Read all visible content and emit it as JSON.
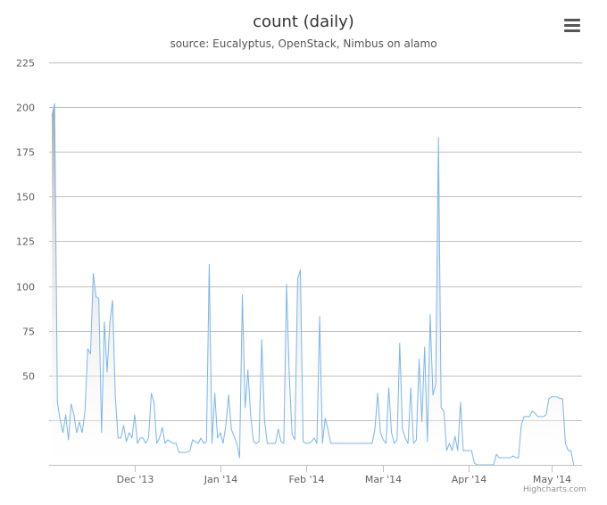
{
  "header": {
    "title": "count (daily)",
    "subtitle": "source: Eucalyptus, OpenStack, Nimbus on alamo",
    "menu_icon": "hamburger-menu-icon"
  },
  "credits": "Highcharts.com",
  "colors": {
    "line": "#7cb5ec",
    "area_top": "#cfcfcf",
    "grid": "#c0c0c0",
    "axis_text": "#606060"
  },
  "chart_data": {
    "type": "area",
    "title": "count (daily)",
    "subtitle": "source: Eucalyptus, OpenStack, Nimbus on alamo",
    "xlabel": "",
    "ylabel": "",
    "ylim": [
      0,
      225
    ],
    "yticks": [
      50,
      75,
      100,
      125,
      150,
      175,
      200,
      225
    ],
    "xticks": [
      {
        "label": "Dec '13",
        "date": "2013-12-01"
      },
      {
        "label": "Jan '14",
        "date": "2014-01-01"
      },
      {
        "label": "Feb '14",
        "date": "2014-02-01"
      },
      {
        "label": "Mar '14",
        "date": "2014-03-01"
      },
      {
        "label": "Apr '14",
        "date": "2014-04-01"
      },
      {
        "label": "May '14",
        "date": "2014-05-01"
      }
    ],
    "grid": true,
    "legend": "none",
    "series": [
      {
        "points": [
          [
            "2013-11-01",
            195
          ],
          [
            "2013-11-02",
            202
          ],
          [
            "2013-11-03",
            35
          ],
          [
            "2013-11-04",
            25
          ],
          [
            "2013-11-05",
            18
          ],
          [
            "2013-11-06",
            28
          ],
          [
            "2013-11-07",
            14
          ],
          [
            "2013-11-08",
            34
          ],
          [
            "2013-11-09",
            28
          ],
          [
            "2013-11-10",
            18
          ],
          [
            "2013-11-11",
            24
          ],
          [
            "2013-11-12",
            18
          ],
          [
            "2013-11-13",
            30
          ],
          [
            "2013-11-14",
            65
          ],
          [
            "2013-11-15",
            62
          ],
          [
            "2013-11-16",
            107
          ],
          [
            "2013-11-17",
            94
          ],
          [
            "2013-11-18",
            93
          ],
          [
            "2013-11-19",
            18
          ],
          [
            "2013-11-20",
            80
          ],
          [
            "2013-11-21",
            52
          ],
          [
            "2013-11-22",
            80
          ],
          [
            "2013-11-23",
            92
          ],
          [
            "2013-11-24",
            38
          ],
          [
            "2013-11-25",
            15
          ],
          [
            "2013-11-26",
            15
          ],
          [
            "2013-11-27",
            22
          ],
          [
            "2013-11-28",
            13
          ],
          [
            "2013-11-29",
            18
          ],
          [
            "2013-11-30",
            15
          ],
          [
            "2013-12-01",
            28
          ],
          [
            "2013-12-02",
            12
          ],
          [
            "2013-12-03",
            15
          ],
          [
            "2013-12-04",
            15
          ],
          [
            "2013-12-05",
            12
          ],
          [
            "2013-12-06",
            15
          ],
          [
            "2013-12-07",
            40
          ],
          [
            "2013-12-08",
            35
          ],
          [
            "2013-12-09",
            12
          ],
          [
            "2013-12-10",
            15
          ],
          [
            "2013-12-11",
            21
          ],
          [
            "2013-12-12",
            12
          ],
          [
            "2013-12-13",
            14
          ],
          [
            "2013-12-14",
            13
          ],
          [
            "2013-12-15",
            12
          ],
          [
            "2013-12-16",
            12
          ],
          [
            "2013-12-17",
            7
          ],
          [
            "2013-12-18",
            7
          ],
          [
            "2013-12-19",
            7
          ],
          [
            "2013-12-20",
            7
          ],
          [
            "2013-12-21",
            8
          ],
          [
            "2013-12-22",
            14
          ],
          [
            "2013-12-23",
            13
          ],
          [
            "2013-12-24",
            12
          ],
          [
            "2013-12-25",
            15
          ],
          [
            "2013-12-26",
            12
          ],
          [
            "2013-12-27",
            13
          ],
          [
            "2013-12-28",
            112
          ],
          [
            "2013-12-29",
            12
          ],
          [
            "2013-12-30",
            40
          ],
          [
            "2013-12-31",
            15
          ],
          [
            "2014-01-01",
            18
          ],
          [
            "2014-01-02",
            12
          ],
          [
            "2014-01-03",
            22
          ],
          [
            "2014-01-04",
            39
          ],
          [
            "2014-01-05",
            20
          ],
          [
            "2014-01-06",
            16
          ],
          [
            "2014-01-07",
            12
          ],
          [
            "2014-01-08",
            4
          ],
          [
            "2014-01-09",
            95
          ],
          [
            "2014-01-10",
            32
          ],
          [
            "2014-01-11",
            53
          ],
          [
            "2014-01-12",
            28
          ],
          [
            "2014-01-13",
            13
          ],
          [
            "2014-01-14",
            12
          ],
          [
            "2014-01-15",
            13
          ],
          [
            "2014-01-16",
            70
          ],
          [
            "2014-01-17",
            25
          ],
          [
            "2014-01-18",
            12
          ],
          [
            "2014-01-19",
            12
          ],
          [
            "2014-01-20",
            12
          ],
          [
            "2014-01-21",
            12
          ],
          [
            "2014-01-22",
            20
          ],
          [
            "2014-01-23",
            13
          ],
          [
            "2014-01-24",
            12
          ],
          [
            "2014-01-25",
            101
          ],
          [
            "2014-01-26",
            50
          ],
          [
            "2014-01-27",
            17
          ],
          [
            "2014-01-28",
            14
          ],
          [
            "2014-01-29",
            104
          ],
          [
            "2014-01-30",
            109
          ],
          [
            "2014-01-31",
            13
          ],
          [
            "2014-02-01",
            12
          ],
          [
            "2014-02-02",
            12
          ],
          [
            "2014-02-03",
            13
          ],
          [
            "2014-02-04",
            15
          ],
          [
            "2014-02-05",
            12
          ],
          [
            "2014-02-06",
            83
          ],
          [
            "2014-02-07",
            12
          ],
          [
            "2014-02-08",
            26
          ],
          [
            "2014-02-09",
            20
          ],
          [
            "2014-02-10",
            12
          ],
          [
            "2014-02-11",
            12
          ],
          [
            "2014-02-12",
            12
          ],
          [
            "2014-02-13",
            12
          ],
          [
            "2014-02-14",
            12
          ],
          [
            "2014-02-15",
            12
          ],
          [
            "2014-02-16",
            12
          ],
          [
            "2014-02-17",
            12
          ],
          [
            "2014-02-18",
            12
          ],
          [
            "2014-02-19",
            12
          ],
          [
            "2014-02-20",
            12
          ],
          [
            "2014-02-21",
            12
          ],
          [
            "2014-02-22",
            12
          ],
          [
            "2014-02-23",
            12
          ],
          [
            "2014-02-24",
            12
          ],
          [
            "2014-02-25",
            12
          ],
          [
            "2014-02-26",
            20
          ],
          [
            "2014-02-27",
            40
          ],
          [
            "2014-02-28",
            18
          ],
          [
            "2014-03-01",
            14
          ],
          [
            "2014-03-02",
            12
          ],
          [
            "2014-03-03",
            43
          ],
          [
            "2014-03-04",
            18
          ],
          [
            "2014-03-05",
            12
          ],
          [
            "2014-03-06",
            14
          ],
          [
            "2014-03-07",
            68
          ],
          [
            "2014-03-08",
            20
          ],
          [
            "2014-03-09",
            15
          ],
          [
            "2014-03-10",
            12
          ],
          [
            "2014-03-11",
            43
          ],
          [
            "2014-03-12",
            12
          ],
          [
            "2014-03-13",
            14
          ],
          [
            "2014-03-14",
            59
          ],
          [
            "2014-03-15",
            24
          ],
          [
            "2014-03-16",
            66
          ],
          [
            "2014-03-17",
            13
          ],
          [
            "2014-03-18",
            84
          ],
          [
            "2014-03-19",
            39
          ],
          [
            "2014-03-20",
            45
          ],
          [
            "2014-03-21",
            183
          ],
          [
            "2014-03-22",
            32
          ],
          [
            "2014-03-23",
            30
          ],
          [
            "2014-03-24",
            8
          ],
          [
            "2014-03-25",
            12
          ],
          [
            "2014-03-26",
            8
          ],
          [
            "2014-03-27",
            16
          ],
          [
            "2014-03-28",
            8
          ],
          [
            "2014-03-29",
            35
          ],
          [
            "2014-03-30",
            8
          ],
          [
            "2014-03-31",
            8
          ],
          [
            "2014-04-01",
            8
          ],
          [
            "2014-04-02",
            8
          ],
          [
            "2014-04-03",
            1
          ],
          [
            "2014-04-04",
            0
          ],
          [
            "2014-04-05",
            0
          ],
          [
            "2014-04-06",
            0
          ],
          [
            "2014-04-07",
            0
          ],
          [
            "2014-04-08",
            0
          ],
          [
            "2014-04-09",
            0
          ],
          [
            "2014-04-10",
            0
          ],
          [
            "2014-04-11",
            6
          ],
          [
            "2014-04-12",
            4
          ],
          [
            "2014-04-13",
            4
          ],
          [
            "2014-04-14",
            4
          ],
          [
            "2014-04-15",
            4
          ],
          [
            "2014-04-16",
            4
          ],
          [
            "2014-04-17",
            5
          ],
          [
            "2014-04-18",
            4
          ],
          [
            "2014-04-19",
            4
          ],
          [
            "2014-04-20",
            22
          ],
          [
            "2014-04-21",
            27
          ],
          [
            "2014-04-22",
            27
          ],
          [
            "2014-04-23",
            27
          ],
          [
            "2014-04-24",
            30
          ],
          [
            "2014-04-25",
            29
          ],
          [
            "2014-04-26",
            27
          ],
          [
            "2014-04-27",
            27
          ],
          [
            "2014-04-28",
            27
          ],
          [
            "2014-04-29",
            28
          ],
          [
            "2014-04-30",
            37
          ],
          [
            "2014-05-01",
            38
          ],
          [
            "2014-05-02",
            38
          ],
          [
            "2014-05-03",
            38
          ],
          [
            "2014-05-04",
            37
          ],
          [
            "2014-05-05",
            37
          ],
          [
            "2014-05-06",
            12
          ],
          [
            "2014-05-07",
            8
          ],
          [
            "2014-05-08",
            8
          ],
          [
            "2014-05-09",
            0
          ]
        ]
      }
    ]
  }
}
